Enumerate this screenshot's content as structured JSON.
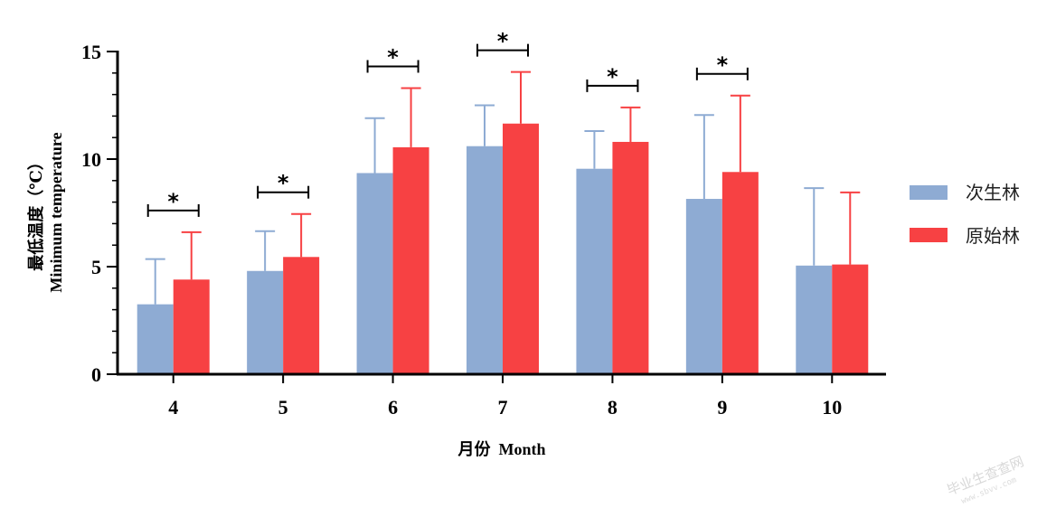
{
  "chart_data": {
    "type": "bar",
    "categories": [
      "4",
      "5",
      "6",
      "7",
      "8",
      "9",
      "10"
    ],
    "series": [
      {
        "name": "次生林",
        "color": "#8EABD3",
        "values": [
          3.25,
          4.8,
          9.35,
          10.6,
          9.55,
          8.15,
          5.05
        ],
        "errors": [
          2.1,
          1.85,
          2.55,
          1.9,
          1.75,
          3.9,
          3.6
        ]
      },
      {
        "name": "原始林",
        "color": "#F74143",
        "values": [
          4.4,
          5.45,
          10.55,
          11.65,
          10.8,
          9.4,
          5.1
        ],
        "errors": [
          2.2,
          2.0,
          2.75,
          2.4,
          1.6,
          3.55,
          3.35
        ]
      }
    ],
    "significance": [
      "*",
      "*",
      "*",
      "*",
      "*",
      "*",
      ""
    ],
    "xlabel": "月份  Month",
    "ylabel_line1": "最低温度（℃）",
    "ylabel_line2": "Minimum temperature",
    "ylim": [
      0,
      15
    ],
    "yticks": [
      0,
      5,
      10,
      15
    ],
    "legend_position": "right",
    "grid": false
  },
  "watermark": {
    "main": "毕业生查查网",
    "sub": "www.sbvv.com"
  }
}
